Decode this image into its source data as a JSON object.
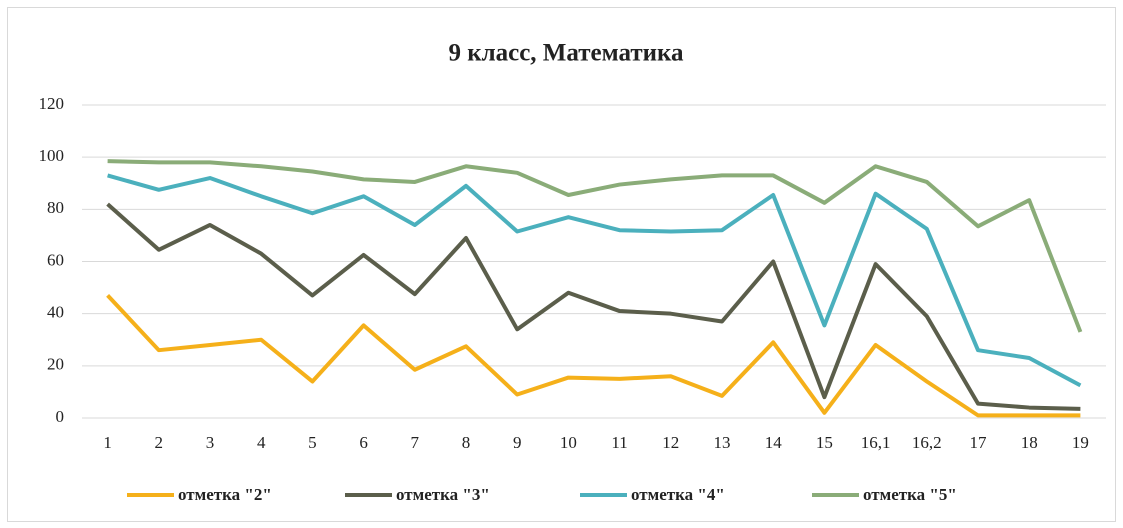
{
  "chart_data": {
    "type": "line",
    "title": "9 класс, Математика",
    "categories": [
      "1",
      "2",
      "3",
      "4",
      "5",
      "6",
      "7",
      "8",
      "9",
      "10",
      "11",
      "12",
      "13",
      "14",
      "15",
      "16,1",
      "16,2",
      "17",
      "18",
      "19"
    ],
    "series": [
      {
        "name": "отметка \"2\"",
        "color": "#f5b01a",
        "values": [
          47,
          26,
          28,
          30,
          14,
          35.5,
          18.5,
          27.5,
          9,
          15.5,
          15,
          16,
          8.5,
          29,
          2,
          28,
          14,
          1,
          1,
          1
        ]
      },
      {
        "name": "отметка \"3\"",
        "color": "#5b5e4b",
        "values": [
          82,
          64.5,
          74,
          63,
          47,
          62.5,
          47.5,
          69,
          34,
          48,
          41,
          40,
          37,
          60,
          8,
          59,
          39,
          5.5,
          4,
          3.5
        ]
      },
      {
        "name": "отметка \"4\"",
        "color": "#4bb0bd",
        "values": [
          93,
          87.5,
          92,
          85,
          78.5,
          85,
          74,
          89,
          71.5,
          77,
          72,
          71.5,
          72,
          85.5,
          35.5,
          86,
          72.5,
          26,
          23,
          12.5
        ]
      },
      {
        "name": "отметка \"5\"",
        "color": "#8aac78",
        "values": [
          98.5,
          98,
          98,
          96.5,
          94.5,
          91.5,
          90.5,
          96.5,
          94,
          85.5,
          89.5,
          91.5,
          93,
          93,
          82.5,
          96.5,
          90.5,
          73.5,
          83.5,
          33
        ]
      }
    ],
    "ylim": [
      0,
      120
    ],
    "yticks": [
      0,
      20,
      40,
      60,
      80,
      100,
      120
    ],
    "grid": true,
    "legend": "bottom"
  }
}
